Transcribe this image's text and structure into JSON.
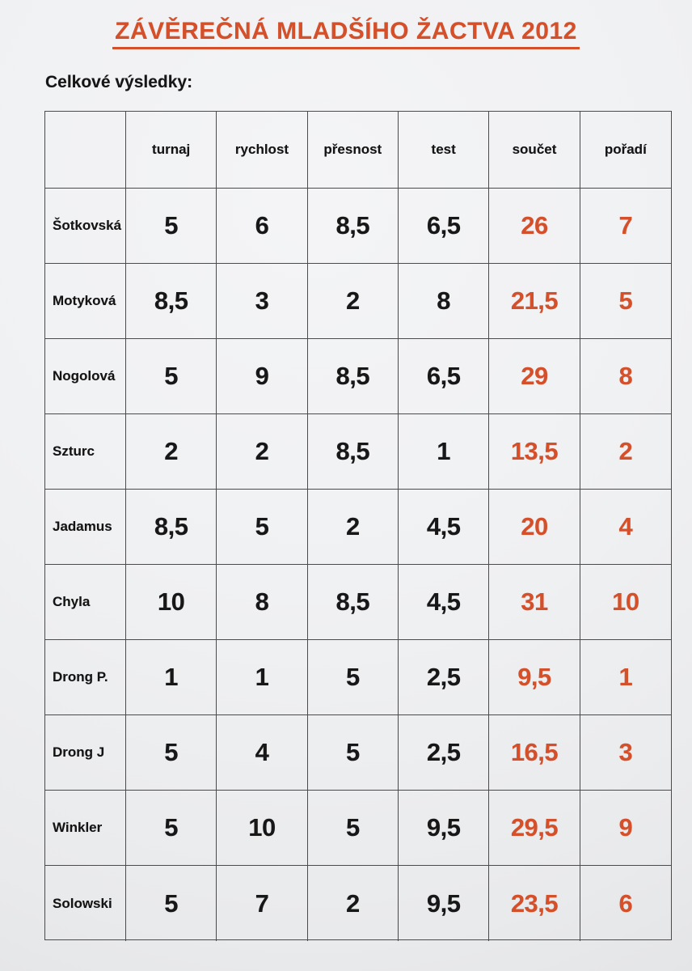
{
  "page": {
    "title": "ZÁVĚREČNÁ MLADŠÍHO ŽACTVA 2012",
    "section_label": "Celkové výsledky:"
  },
  "colors": {
    "accent": "#d4502a",
    "text": "#171717",
    "paper": "#f0f1f3",
    "table_border": "#4b4b4b"
  },
  "table": {
    "columns": [
      "",
      "turnaj",
      "rychlost",
      "přesnost",
      "test",
      "součet",
      "pořadí"
    ],
    "accent_column_indexes": [
      5,
      6
    ],
    "rows": [
      [
        "Šotkovská",
        "5",
        "6",
        "8,5",
        "6,5",
        "26",
        "7"
      ],
      [
        "Motyková",
        "8,5",
        "3",
        "2",
        "8",
        "21,5",
        "5"
      ],
      [
        "Nogolová",
        "5",
        "9",
        "8,5",
        "6,5",
        "29",
        "8"
      ],
      [
        "Szturc",
        "2",
        "2",
        "8,5",
        "1",
        "13,5",
        "2"
      ],
      [
        "Jadamus",
        "8,5",
        "5",
        "2",
        "4,5",
        "20",
        "4"
      ],
      [
        "Chyla",
        "10",
        "8",
        "8,5",
        "4,5",
        "31",
        "10"
      ],
      [
        "Drong P.",
        "1",
        "1",
        "5",
        "2,5",
        "9,5",
        "1"
      ],
      [
        "Drong J",
        "5",
        "4",
        "5",
        "2,5",
        "16,5",
        "3"
      ],
      [
        "Winkler",
        "5",
        "10",
        "5",
        "9,5",
        "29,5",
        "9"
      ],
      [
        "Solowski",
        "5",
        "7",
        "2",
        "9,5",
        "23,5",
        "6"
      ]
    ]
  }
}
